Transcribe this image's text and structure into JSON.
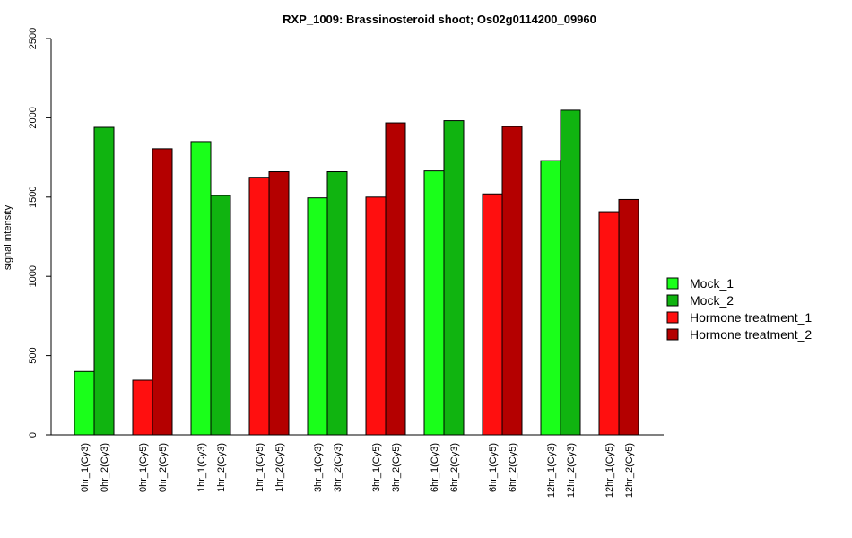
{
  "chart_data": {
    "type": "bar",
    "title": "RXP_1009: Brassinosteroid shoot; Os02g0114200_09960",
    "xlabel": "",
    "ylabel": "signal intensity",
    "ylim": [
      0,
      2500
    ],
    "yticks": [
      0,
      500,
      1000,
      1500,
      2000,
      2500
    ],
    "grid": false,
    "legend_position": "right",
    "series_colors": {
      "Mock_1": "#1aff1a",
      "Mock_2": "#10b410",
      "Hormone treatment_1": "#ff0f0f",
      "Hormone treatment_2": "#b40000"
    },
    "legend": [
      "Mock_1",
      "Mock_2",
      "Hormone treatment_1",
      "Hormone treatment_2"
    ],
    "bars": [
      {
        "label": "0hr_1(Cy3)",
        "value": 400,
        "series": "Mock_1"
      },
      {
        "label": "0hr_2(Cy3)",
        "value": 1940,
        "series": "Mock_2"
      },
      {
        "label": "0hr_1(Cy5)",
        "value": 345,
        "series": "Hormone treatment_1"
      },
      {
        "label": "0hr_2(Cy5)",
        "value": 1805,
        "series": "Hormone treatment_2"
      },
      {
        "label": "1hr_1(Cy3)",
        "value": 1850,
        "series": "Mock_1"
      },
      {
        "label": "1hr_2(Cy3)",
        "value": 1510,
        "series": "Mock_2"
      },
      {
        "label": "1hr_1(Cy5)",
        "value": 1625,
        "series": "Hormone treatment_1"
      },
      {
        "label": "1hr_2(Cy5)",
        "value": 1660,
        "series": "Hormone treatment_2"
      },
      {
        "label": "3hr_1(Cy3)",
        "value": 1495,
        "series": "Mock_1"
      },
      {
        "label": "3hr_2(Cy3)",
        "value": 1660,
        "series": "Mock_2"
      },
      {
        "label": "3hr_1(Cy5)",
        "value": 1500,
        "series": "Hormone treatment_1"
      },
      {
        "label": "3hr_2(Cy5)",
        "value": 1968,
        "series": "Hormone treatment_2"
      },
      {
        "label": "6hr_1(Cy3)",
        "value": 1665,
        "series": "Mock_1"
      },
      {
        "label": "6hr_2(Cy3)",
        "value": 1982,
        "series": "Mock_2"
      },
      {
        "label": "6hr_1(Cy5)",
        "value": 1520,
        "series": "Hormone treatment_1"
      },
      {
        "label": "6hr_2(Cy5)",
        "value": 1945,
        "series": "Hormone treatment_2"
      },
      {
        "label": "12hr_1(Cy3)",
        "value": 1730,
        "series": "Mock_1"
      },
      {
        "label": "12hr_2(Cy3)",
        "value": 2048,
        "series": "Mock_2"
      },
      {
        "label": "12hr_1(Cy5)",
        "value": 1408,
        "series": "Hormone treatment_1"
      },
      {
        "label": "12hr_2(Cy5)",
        "value": 1485,
        "series": "Hormone treatment_2"
      }
    ]
  }
}
